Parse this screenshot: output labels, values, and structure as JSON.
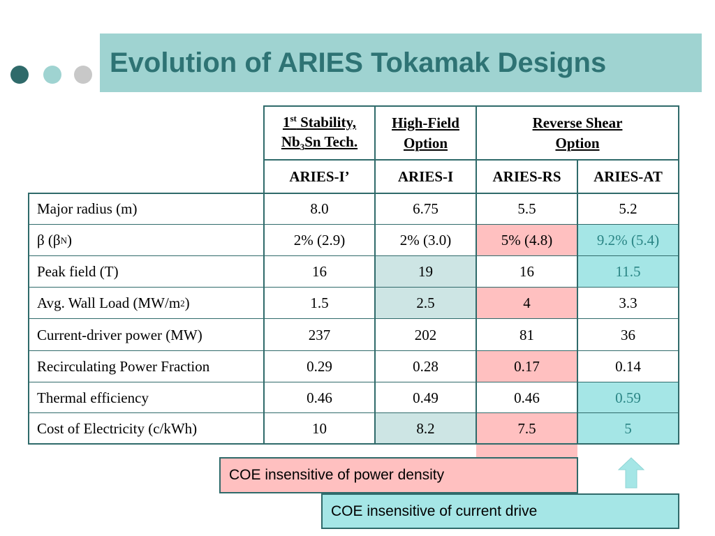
{
  "colors": {
    "title_bg": "#9fd3d1",
    "title_text": "#2e7374",
    "border": "#2f6a6a",
    "pink": "#ffc0c0",
    "light_teal": "#cde5e4",
    "cyan": "#a5e6e6",
    "teal_text": "#2a8585",
    "dot_dark": "#2f6a6a",
    "dot_light": "#9fd3d1",
    "dot_gray": "#c8c8c8"
  },
  "title": "Evolution of ARIES Tokamak Designs",
  "groups": [
    {
      "line1_base": "1",
      "line1_sup": "st",
      "line1_rest": " Stability,",
      "line2_a": "Nb",
      "line2_sub": "3",
      "line2_b": "Sn Tech."
    },
    {
      "line1": "High-Field",
      "line2": "Option"
    },
    {
      "line1": "Reverse Shear",
      "line2": "Option"
    }
  ],
  "designs": [
    "ARIES-I’",
    "ARIES-I",
    "ARIES-RS",
    "ARIES-AT"
  ],
  "rows": [
    {
      "label": "Major radius (m)",
      "values": [
        "8.0",
        "6.75",
        "5.5",
        "5.2"
      ]
    },
    {
      "label_a": "β (β",
      "label_sub": "N",
      "label_b": ")",
      "values": [
        "2% (2.9)",
        "2% (3.0)",
        "5% (4.8)",
        "9.2% (5.4)"
      ]
    },
    {
      "label": "Peak field (T)",
      "values": [
        "16",
        "19",
        "16",
        "11.5"
      ]
    },
    {
      "label_a": "Avg. Wall Load (MW/m",
      "label_sup": "2",
      "label_b": ")",
      "values": [
        "1.5",
        "2.5",
        "4",
        "3.3"
      ]
    },
    {
      "label": "Current-driver power (MW)",
      "values": [
        "237",
        "202",
        "81",
        "36"
      ]
    },
    {
      "label": "Recirculating Power Fraction",
      "values": [
        "0.29",
        "0.28",
        "0.17",
        "0.14"
      ]
    },
    {
      "label": "Thermal efficiency",
      "values": [
        "0.46",
        "0.49",
        "0.46",
        "0.59"
      ]
    },
    {
      "label": "Cost of Electricity (c/kWh)",
      "values": [
        "10",
        "8.2",
        "7.5",
        "5"
      ]
    }
  ],
  "callouts": {
    "power_density": "COE insensitive of power density",
    "current_drive": "COE insensitive of current drive"
  },
  "arrow_icon": "up-arrow-icon"
}
